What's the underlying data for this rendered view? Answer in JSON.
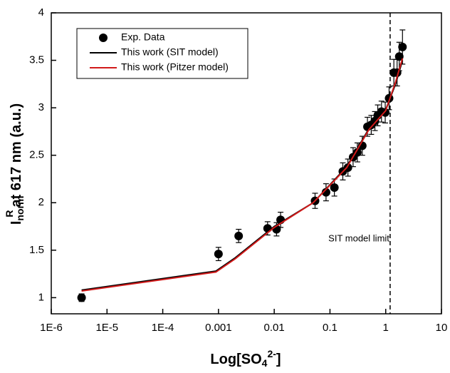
{
  "chart_data": {
    "type": "scatter",
    "xscale": "log",
    "xlim": [
      1e-06,
      10
    ],
    "ylim": [
      0.83,
      4
    ],
    "xticks": [
      {
        "value": 1e-06,
        "label": "1E-6"
      },
      {
        "value": 1e-05,
        "label": "1E-5"
      },
      {
        "value": 0.0001,
        "label": "1E-4"
      },
      0.001,
      0.01,
      0.1,
      1,
      10
    ],
    "yticks": [
      1,
      1.5,
      2,
      2.5,
      3,
      3.5,
      4
    ],
    "xlabel": {
      "text": "Log[SO",
      "sub": "4",
      "sup": "2-",
      "end": "]"
    },
    "ylabel": {
      "text": "I",
      "sub": "norm",
      "sup": "R",
      "end": "at 617 nm (a.u.)"
    },
    "legend": "upper left",
    "series": [
      {
        "name": "Exp. Data",
        "type": "scatter",
        "color": "#000000",
        "x": [
          3.5e-06,
          0.001,
          0.0023,
          0.0076,
          0.011,
          0.013,
          0.054,
          0.085,
          0.12,
          0.17,
          0.21,
          0.26,
          0.31,
          0.38,
          0.47,
          0.55,
          0.64,
          0.72,
          0.84,
          0.98,
          1.15,
          1.4,
          1.6,
          1.75,
          2.0
        ],
        "values": [
          1.0,
          1.46,
          1.65,
          1.73,
          1.72,
          1.82,
          2.02,
          2.11,
          2.16,
          2.33,
          2.37,
          2.48,
          2.53,
          2.6,
          2.8,
          2.82,
          2.86,
          2.92,
          2.96,
          2.95,
          3.1,
          3.37,
          3.37,
          3.54,
          3.64
        ],
        "errors": [
          0.04,
          0.07,
          0.07,
          0.07,
          0.07,
          0.08,
          0.08,
          0.09,
          0.09,
          0.09,
          0.09,
          0.1,
          0.1,
          0.1,
          0.1,
          0.1,
          0.1,
          0.11,
          0.11,
          0.11,
          0.12,
          0.14,
          0.14,
          0.15,
          0.18
        ]
      },
      {
        "name": "This work (SIT model)",
        "type": "line",
        "color": "#000000",
        "x": [
          3.5e-06,
          0.0009,
          0.002,
          0.01,
          0.05,
          0.2,
          0.5,
          1,
          1.5,
          2.0
        ],
        "values": [
          1.08,
          1.28,
          1.42,
          1.75,
          2.0,
          2.38,
          2.78,
          2.98,
          3.25,
          3.5
        ]
      },
      {
        "name": "This work (Pitzer model)",
        "type": "line",
        "color": "#d11a1a",
        "x": [
          3.5e-06,
          0.0009,
          0.002,
          0.01,
          0.05,
          0.2,
          0.5,
          1,
          1.5,
          2.0
        ],
        "values": [
          1.07,
          1.27,
          1.41,
          1.74,
          2.0,
          2.37,
          2.77,
          2.97,
          3.27,
          3.52
        ]
      }
    ],
    "annotations": [
      {
        "text": "SIT model limit",
        "x": 1.2
      }
    ]
  }
}
